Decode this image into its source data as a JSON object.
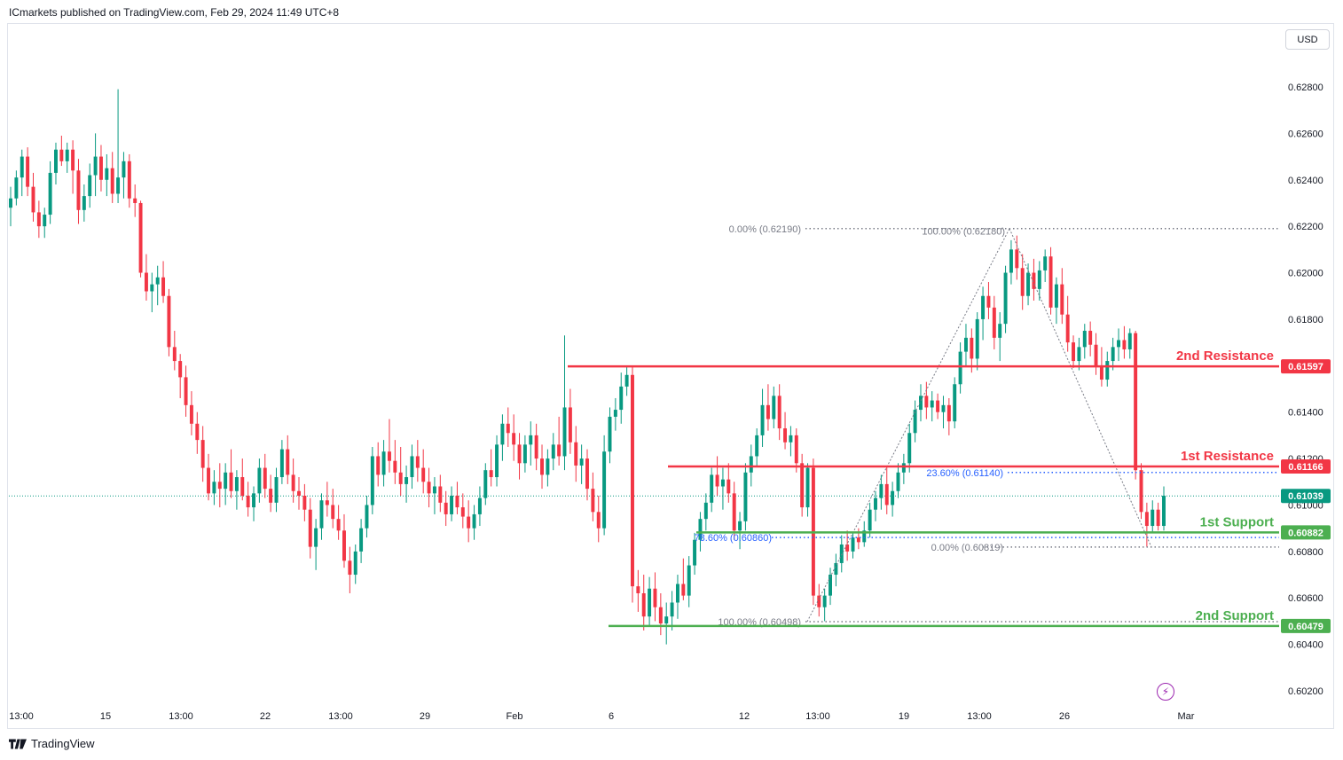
{
  "header": {
    "published_text": "ICmarkets published on TradingView.com, Feb 29, 2024 11:49 UTC+8"
  },
  "currency_button": "USD",
  "footer": {
    "brand": "TradingView"
  },
  "icons": {
    "lightning": "lightning-icon",
    "logo": "tradingview-logo-icon"
  },
  "colors": {
    "up": "#089981",
    "down": "#f23645",
    "resistance": "#f23645",
    "support": "#4caf50",
    "fib": "#787b86",
    "fib_blue": "#2962ff",
    "axis_text": "#131722"
  },
  "chart_data": {
    "type": "candlestick",
    "ylim": [
      0.6018,
      0.6298
    ],
    "y_ticks": [
      "0.62800",
      "0.62600",
      "0.62400",
      "0.62200",
      "0.62000",
      "0.61800",
      "0.61400",
      "0.61200",
      "0.61000",
      "0.60800",
      "0.60600",
      "0.60400",
      "0.60200"
    ],
    "x_ticks": [
      "13:00",
      "15",
      "13:00",
      "22",
      "13:00",
      "29",
      "Feb",
      "6",
      "12",
      "13:00",
      "19",
      "13:00",
      "26",
      "Mar"
    ],
    "last_price": "0.61039",
    "levels": [
      {
        "name": "2nd Resistance",
        "value": "0.61597",
        "kind": "resistance"
      },
      {
        "name": "1st Resistance",
        "value": "0.61166",
        "kind": "resistance"
      },
      {
        "name": "1st Support",
        "value": "0.60882",
        "kind": "support"
      },
      {
        "name": "2nd Support",
        "value": "0.60479",
        "kind": "support"
      }
    ],
    "fib_labels": [
      {
        "text": "0.00% (0.62190)",
        "value": 0.6219
      },
      {
        "text": "100.00% (0.62180)",
        "value": 0.6218
      },
      {
        "text": "23.60% (0.61140)",
        "value": 0.6114
      },
      {
        "text": "78.60% (0.60860)",
        "value": 0.6086
      },
      {
        "text": "0.00% (0.60819)",
        "value": 0.60819
      },
      {
        "text": "100.00% (0.60498)",
        "value": 0.60498
      }
    ],
    "candles_ohlc": [
      [
        0.6228,
        0.6237,
        0.622,
        0.6232
      ],
      [
        0.6232,
        0.6244,
        0.6229,
        0.6241
      ],
      [
        0.6241,
        0.6253,
        0.6233,
        0.625
      ],
      [
        0.625,
        0.6254,
        0.6233,
        0.6237
      ],
      [
        0.6237,
        0.6243,
        0.6222,
        0.6226
      ],
      [
        0.6226,
        0.6231,
        0.6215,
        0.622
      ],
      [
        0.622,
        0.6228,
        0.6215,
        0.6225
      ],
      [
        0.6225,
        0.6248,
        0.6221,
        0.6243
      ],
      [
        0.6243,
        0.6256,
        0.6238,
        0.6253
      ],
      [
        0.6253,
        0.6259,
        0.6246,
        0.6248
      ],
      [
        0.6248,
        0.6256,
        0.6243,
        0.6253
      ],
      [
        0.6253,
        0.6257,
        0.6234,
        0.6244
      ],
      [
        0.6244,
        0.6249,
        0.6221,
        0.6227
      ],
      [
        0.6227,
        0.6238,
        0.6222,
        0.6233
      ],
      [
        0.6233,
        0.6247,
        0.6228,
        0.6242
      ],
      [
        0.6242,
        0.626,
        0.6233,
        0.625
      ],
      [
        0.625,
        0.6255,
        0.6235,
        0.624
      ],
      [
        0.624,
        0.6251,
        0.6233,
        0.6245
      ],
      [
        0.6245,
        0.6252,
        0.623,
        0.6234
      ],
      [
        0.6234,
        0.6279,
        0.623,
        0.6241
      ],
      [
        0.6241,
        0.6252,
        0.6232,
        0.6248
      ],
      [
        0.6248,
        0.6251,
        0.6228,
        0.6232
      ],
      [
        0.6232,
        0.6238,
        0.6224,
        0.623
      ],
      [
        0.623,
        0.6231,
        0.6198,
        0.62
      ],
      [
        0.62,
        0.6208,
        0.6188,
        0.6192
      ],
      [
        0.6192,
        0.62,
        0.6183,
        0.6195
      ],
      [
        0.6195,
        0.6203,
        0.6186,
        0.6198
      ],
      [
        0.6198,
        0.6205,
        0.6187,
        0.619
      ],
      [
        0.619,
        0.6193,
        0.6164,
        0.6168
      ],
      [
        0.6168,
        0.6175,
        0.6158,
        0.6162
      ],
      [
        0.6162,
        0.6165,
        0.6146,
        0.6155
      ],
      [
        0.6155,
        0.616,
        0.6138,
        0.6143
      ],
      [
        0.6143,
        0.6149,
        0.613,
        0.6135
      ],
      [
        0.6135,
        0.614,
        0.6122,
        0.6128
      ],
      [
        0.6128,
        0.6134,
        0.611,
        0.6116
      ],
      [
        0.6116,
        0.6122,
        0.6102,
        0.6105
      ],
      [
        0.6105,
        0.6115,
        0.61,
        0.611
      ],
      [
        0.611,
        0.6118,
        0.6099,
        0.6107
      ],
      [
        0.6107,
        0.6118,
        0.61,
        0.6114
      ],
      [
        0.6114,
        0.6124,
        0.6103,
        0.6106
      ],
      [
        0.6106,
        0.6115,
        0.6098,
        0.6112
      ],
      [
        0.6112,
        0.612,
        0.6102,
        0.6104
      ],
      [
        0.6104,
        0.611,
        0.6095,
        0.6099
      ],
      [
        0.6099,
        0.6108,
        0.6093,
        0.6105
      ],
      [
        0.6105,
        0.612,
        0.6101,
        0.6116
      ],
      [
        0.6116,
        0.6122,
        0.6103,
        0.6107
      ],
      [
        0.6107,
        0.6113,
        0.6097,
        0.6101
      ],
      [
        0.6101,
        0.6116,
        0.6097,
        0.6112
      ],
      [
        0.6112,
        0.6128,
        0.6109,
        0.6124
      ],
      [
        0.6124,
        0.613,
        0.6109,
        0.6113
      ],
      [
        0.6113,
        0.612,
        0.6101,
        0.6106
      ],
      [
        0.6106,
        0.6112,
        0.6098,
        0.6104
      ],
      [
        0.6104,
        0.6109,
        0.6093,
        0.6098
      ],
      [
        0.6098,
        0.6103,
        0.6077,
        0.6082
      ],
      [
        0.6082,
        0.6094,
        0.6072,
        0.609
      ],
      [
        0.609,
        0.6105,
        0.6085,
        0.6102
      ],
      [
        0.6102,
        0.611,
        0.6095,
        0.61
      ],
      [
        0.61,
        0.6107,
        0.609,
        0.6094
      ],
      [
        0.6094,
        0.61,
        0.6085,
        0.6089
      ],
      [
        0.6089,
        0.6096,
        0.6073,
        0.6076
      ],
      [
        0.6076,
        0.6082,
        0.6062,
        0.607
      ],
      [
        0.607,
        0.6083,
        0.6066,
        0.608
      ],
      [
        0.608,
        0.6094,
        0.6075,
        0.609
      ],
      [
        0.609,
        0.6104,
        0.6086,
        0.61
      ],
      [
        0.61,
        0.6125,
        0.6096,
        0.6121
      ],
      [
        0.6121,
        0.6127,
        0.6108,
        0.6113
      ],
      [
        0.6113,
        0.6128,
        0.6108,
        0.6123
      ],
      [
        0.6123,
        0.6137,
        0.6114,
        0.6119
      ],
      [
        0.6119,
        0.6128,
        0.6109,
        0.6114
      ],
      [
        0.6114,
        0.6125,
        0.6104,
        0.6109
      ],
      [
        0.6109,
        0.6117,
        0.6101,
        0.6112
      ],
      [
        0.6112,
        0.6126,
        0.6107,
        0.6121
      ],
      [
        0.6121,
        0.6128,
        0.611,
        0.6116
      ],
      [
        0.6116,
        0.6124,
        0.6105,
        0.611
      ],
      [
        0.611,
        0.6116,
        0.6099,
        0.6105
      ],
      [
        0.6105,
        0.6112,
        0.6096,
        0.6108
      ],
      [
        0.6108,
        0.6113,
        0.6097,
        0.6101
      ],
      [
        0.6101,
        0.6106,
        0.6091,
        0.6096
      ],
      [
        0.6096,
        0.6108,
        0.6093,
        0.6104
      ],
      [
        0.6104,
        0.611,
        0.6096,
        0.6099
      ],
      [
        0.6099,
        0.6105,
        0.609,
        0.6095
      ],
      [
        0.6095,
        0.6102,
        0.6084,
        0.609
      ],
      [
        0.609,
        0.61,
        0.6085,
        0.6096
      ],
      [
        0.6096,
        0.6108,
        0.6091,
        0.6103
      ],
      [
        0.6103,
        0.6118,
        0.61,
        0.6115
      ],
      [
        0.6115,
        0.6124,
        0.6108,
        0.6112
      ],
      [
        0.6112,
        0.613,
        0.6108,
        0.6126
      ],
      [
        0.6126,
        0.6139,
        0.6119,
        0.6135
      ],
      [
        0.6135,
        0.6142,
        0.6125,
        0.6131
      ],
      [
        0.6131,
        0.6139,
        0.6119,
        0.6126
      ],
      [
        0.6126,
        0.6131,
        0.6111,
        0.6118
      ],
      [
        0.6118,
        0.613,
        0.6114,
        0.6126
      ],
      [
        0.6126,
        0.6136,
        0.6117,
        0.613
      ],
      [
        0.613,
        0.6135,
        0.6115,
        0.612
      ],
      [
        0.612,
        0.6126,
        0.6107,
        0.6113
      ],
      [
        0.6113,
        0.6124,
        0.6108,
        0.612
      ],
      [
        0.612,
        0.6131,
        0.6115,
        0.6126
      ],
      [
        0.6126,
        0.6138,
        0.6117,
        0.6121
      ],
      [
        0.6121,
        0.6173,
        0.6115,
        0.6142
      ],
      [
        0.6142,
        0.615,
        0.6122,
        0.6127
      ],
      [
        0.6127,
        0.6134,
        0.611,
        0.6117
      ],
      [
        0.6117,
        0.6126,
        0.6109,
        0.612
      ],
      [
        0.612,
        0.6124,
        0.6102,
        0.6107
      ],
      [
        0.6107,
        0.6114,
        0.6093,
        0.6097
      ],
      [
        0.6097,
        0.6104,
        0.6084,
        0.609
      ],
      [
        0.609,
        0.613,
        0.6087,
        0.6123
      ],
      [
        0.6123,
        0.6142,
        0.6118,
        0.6138
      ],
      [
        0.6138,
        0.6146,
        0.6132,
        0.6141
      ],
      [
        0.6141,
        0.6157,
        0.6135,
        0.6151
      ],
      [
        0.6151,
        0.616,
        0.6147,
        0.6156
      ],
      [
        0.6156,
        0.616,
        0.6058,
        0.6065
      ],
      [
        0.6065,
        0.6072,
        0.6054,
        0.6062
      ],
      [
        0.6062,
        0.607,
        0.6046,
        0.6052
      ],
      [
        0.6052,
        0.6069,
        0.6048,
        0.6064
      ],
      [
        0.6064,
        0.6071,
        0.605,
        0.6056
      ],
      [
        0.6056,
        0.6062,
        0.6044,
        0.6049
      ],
      [
        0.6049,
        0.6058,
        0.604,
        0.6052
      ],
      [
        0.6052,
        0.6063,
        0.6046,
        0.6058
      ],
      [
        0.6058,
        0.607,
        0.6051,
        0.6066
      ],
      [
        0.6066,
        0.6077,
        0.6059,
        0.6061
      ],
      [
        0.6061,
        0.6078,
        0.6056,
        0.6074
      ],
      [
        0.6074,
        0.6088,
        0.607,
        0.6085
      ],
      [
        0.6085,
        0.6097,
        0.608,
        0.6094
      ],
      [
        0.6094,
        0.6105,
        0.6089,
        0.6101
      ],
      [
        0.6101,
        0.6116,
        0.6097,
        0.6113
      ],
      [
        0.6113,
        0.6121,
        0.6104,
        0.6108
      ],
      [
        0.6108,
        0.6116,
        0.6098,
        0.6111
      ],
      [
        0.6111,
        0.6118,
        0.6101,
        0.6105
      ],
      [
        0.6105,
        0.611,
        0.6085,
        0.6089
      ],
      [
        0.6089,
        0.6097,
        0.6081,
        0.6093
      ],
      [
        0.6093,
        0.6118,
        0.6089,
        0.6114
      ],
      [
        0.6114,
        0.6126,
        0.6108,
        0.6121
      ],
      [
        0.6121,
        0.6133,
        0.6117,
        0.613
      ],
      [
        0.613,
        0.615,
        0.6125,
        0.6143
      ],
      [
        0.6143,
        0.6152,
        0.6132,
        0.6137
      ],
      [
        0.6137,
        0.6151,
        0.6133,
        0.6147
      ],
      [
        0.6147,
        0.6152,
        0.6128,
        0.6133
      ],
      [
        0.6133,
        0.614,
        0.6124,
        0.6127
      ],
      [
        0.6127,
        0.6134,
        0.6121,
        0.613
      ],
      [
        0.613,
        0.6133,
        0.6114,
        0.6118
      ],
      [
        0.6118,
        0.6122,
        0.6095,
        0.6099
      ],
      [
        0.6099,
        0.6118,
        0.6095,
        0.6116
      ],
      [
        0.6116,
        0.612,
        0.6057,
        0.6061
      ],
      [
        0.6061,
        0.6066,
        0.6052,
        0.6056
      ],
      [
        0.6056,
        0.6064,
        0.605,
        0.6061
      ],
      [
        0.6061,
        0.6073,
        0.6057,
        0.607
      ],
      [
        0.607,
        0.6079,
        0.6065,
        0.6075
      ],
      [
        0.6075,
        0.6087,
        0.6071,
        0.6083
      ],
      [
        0.6083,
        0.6089,
        0.6076,
        0.608
      ],
      [
        0.608,
        0.6088,
        0.6077,
        0.6086
      ],
      [
        0.6086,
        0.609,
        0.6081,
        0.6084
      ],
      [
        0.6084,
        0.6093,
        0.6082,
        0.6089
      ],
      [
        0.6089,
        0.6101,
        0.6086,
        0.6098
      ],
      [
        0.6098,
        0.6106,
        0.6093,
        0.6103
      ],
      [
        0.6103,
        0.6113,
        0.6098,
        0.6109
      ],
      [
        0.6109,
        0.6117,
        0.6096,
        0.61
      ],
      [
        0.61,
        0.611,
        0.6095,
        0.6106
      ],
      [
        0.6106,
        0.6118,
        0.6103,
        0.6114
      ],
      [
        0.6114,
        0.6122,
        0.6109,
        0.6118
      ],
      [
        0.6118,
        0.6135,
        0.6114,
        0.6131
      ],
      [
        0.6131,
        0.6145,
        0.6127,
        0.6141
      ],
      [
        0.6141,
        0.6152,
        0.6136,
        0.6147
      ],
      [
        0.6147,
        0.6153,
        0.6137,
        0.6142
      ],
      [
        0.6142,
        0.6149,
        0.6136,
        0.6145
      ],
      [
        0.6145,
        0.6148,
        0.6137,
        0.614
      ],
      [
        0.614,
        0.6147,
        0.6133,
        0.6143
      ],
      [
        0.6143,
        0.6146,
        0.613,
        0.6136
      ],
      [
        0.6136,
        0.6155,
        0.6133,
        0.6152
      ],
      [
        0.6152,
        0.617,
        0.6148,
        0.6166
      ],
      [
        0.6166,
        0.6178,
        0.616,
        0.6172
      ],
      [
        0.6172,
        0.6176,
        0.6157,
        0.6163
      ],
      [
        0.6163,
        0.6183,
        0.6158,
        0.618
      ],
      [
        0.618,
        0.6194,
        0.6171,
        0.619
      ],
      [
        0.619,
        0.6196,
        0.618,
        0.6185
      ],
      [
        0.6185,
        0.619,
        0.6167,
        0.6172
      ],
      [
        0.6172,
        0.6183,
        0.6162,
        0.6178
      ],
      [
        0.6178,
        0.6203,
        0.6174,
        0.62
      ],
      [
        0.62,
        0.6214,
        0.6195,
        0.621
      ],
      [
        0.621,
        0.6216,
        0.6197,
        0.6202
      ],
      [
        0.6202,
        0.6208,
        0.6184,
        0.619
      ],
      [
        0.619,
        0.6204,
        0.6186,
        0.62
      ],
      [
        0.62,
        0.6206,
        0.6188,
        0.6193
      ],
      [
        0.6193,
        0.6205,
        0.6188,
        0.6201
      ],
      [
        0.6201,
        0.621,
        0.6196,
        0.6207
      ],
      [
        0.6207,
        0.6211,
        0.6182,
        0.6185
      ],
      [
        0.6185,
        0.6198,
        0.6178,
        0.6195
      ],
      [
        0.6195,
        0.6202,
        0.6178,
        0.6182
      ],
      [
        0.6182,
        0.619,
        0.6166,
        0.617
      ],
      [
        0.617,
        0.6173,
        0.6159,
        0.6162
      ],
      [
        0.6162,
        0.6172,
        0.6158,
        0.6168
      ],
      [
        0.6168,
        0.6178,
        0.6163,
        0.6175
      ],
      [
        0.6175,
        0.6179,
        0.6164,
        0.6169
      ],
      [
        0.6169,
        0.6174,
        0.6156,
        0.616
      ],
      [
        0.616,
        0.6168,
        0.6151,
        0.6154
      ],
      [
        0.6154,
        0.6166,
        0.6151,
        0.6162
      ],
      [
        0.6162,
        0.6172,
        0.6158,
        0.6168
      ],
      [
        0.6168,
        0.6176,
        0.6162,
        0.6171
      ],
      [
        0.6171,
        0.6177,
        0.6163,
        0.6167
      ],
      [
        0.6167,
        0.6176,
        0.6163,
        0.6174
      ],
      [
        0.6174,
        0.6175,
        0.6111,
        0.6115
      ],
      [
        0.6115,
        0.6118,
        0.6094,
        0.6097
      ],
      [
        0.6097,
        0.6101,
        0.6082,
        0.6091
      ],
      [
        0.6091,
        0.6102,
        0.6088,
        0.6098
      ],
      [
        0.6098,
        0.6101,
        0.6089,
        0.6091
      ],
      [
        0.6091,
        0.6108,
        0.6089,
        0.6104
      ]
    ]
  }
}
